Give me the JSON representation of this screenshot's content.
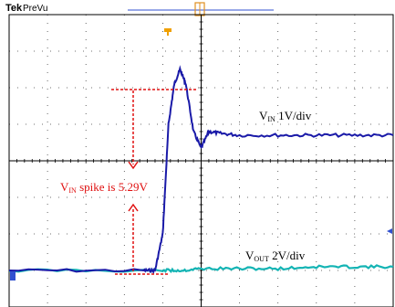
{
  "header": {
    "brand": "Tek",
    "mode": "PreVu"
  },
  "annotations": {
    "spike_text": "V",
    "spike_sub": "IN",
    "spike_rest": " spike is 5.29V",
    "vin_v": "V",
    "vin_sub": "IN",
    "vin_scale": " 1V/div",
    "vout_v": "V",
    "vout_sub": "OUT",
    "vout_scale": " 2V/div"
  },
  "colors": {
    "vin_trace": "#1a1aa8",
    "vout_trace": "#14b4b4",
    "vout_trace_dark": "#1f6f8a",
    "annotation_red": "#e01010",
    "grid": "#000000",
    "trigger_marker": "#f0a000",
    "marker_blue": "#3050d0"
  },
  "chart_data": {
    "type": "line",
    "title": "",
    "grid": true,
    "divisions": {
      "x": 10,
      "y": 8
    },
    "series": [
      {
        "name": "VIN",
        "scale_v_per_div": 1,
        "x_div": [
          0,
          3.5,
          3.8,
          4.0,
          4.15,
          4.3,
          4.45,
          4.6,
          4.8,
          5.0,
          5.2,
          5.5,
          6.0,
          7.0,
          8.0,
          9.0,
          10.0
        ],
        "y_div": [
          -3.0,
          -3.0,
          -3.0,
          -2.0,
          1.0,
          2.1,
          2.5,
          2.1,
          0.8,
          0.35,
          0.8,
          0.75,
          0.7,
          0.7,
          0.7,
          0.7,
          0.7
        ]
      },
      {
        "name": "VOUT",
        "scale_v_per_div": 2,
        "x_div": [
          0,
          3.5,
          4.0,
          4.5,
          5.0,
          6.0,
          7.0,
          8.0,
          9.0,
          10.0
        ],
        "y_div": [
          -3.0,
          -3.0,
          -3.0,
          -3.0,
          -2.95,
          -2.95,
          -2.95,
          -2.9,
          -2.9,
          -2.9
        ]
      }
    ],
    "annotation": {
      "vin_spike_v": 5.29
    }
  }
}
